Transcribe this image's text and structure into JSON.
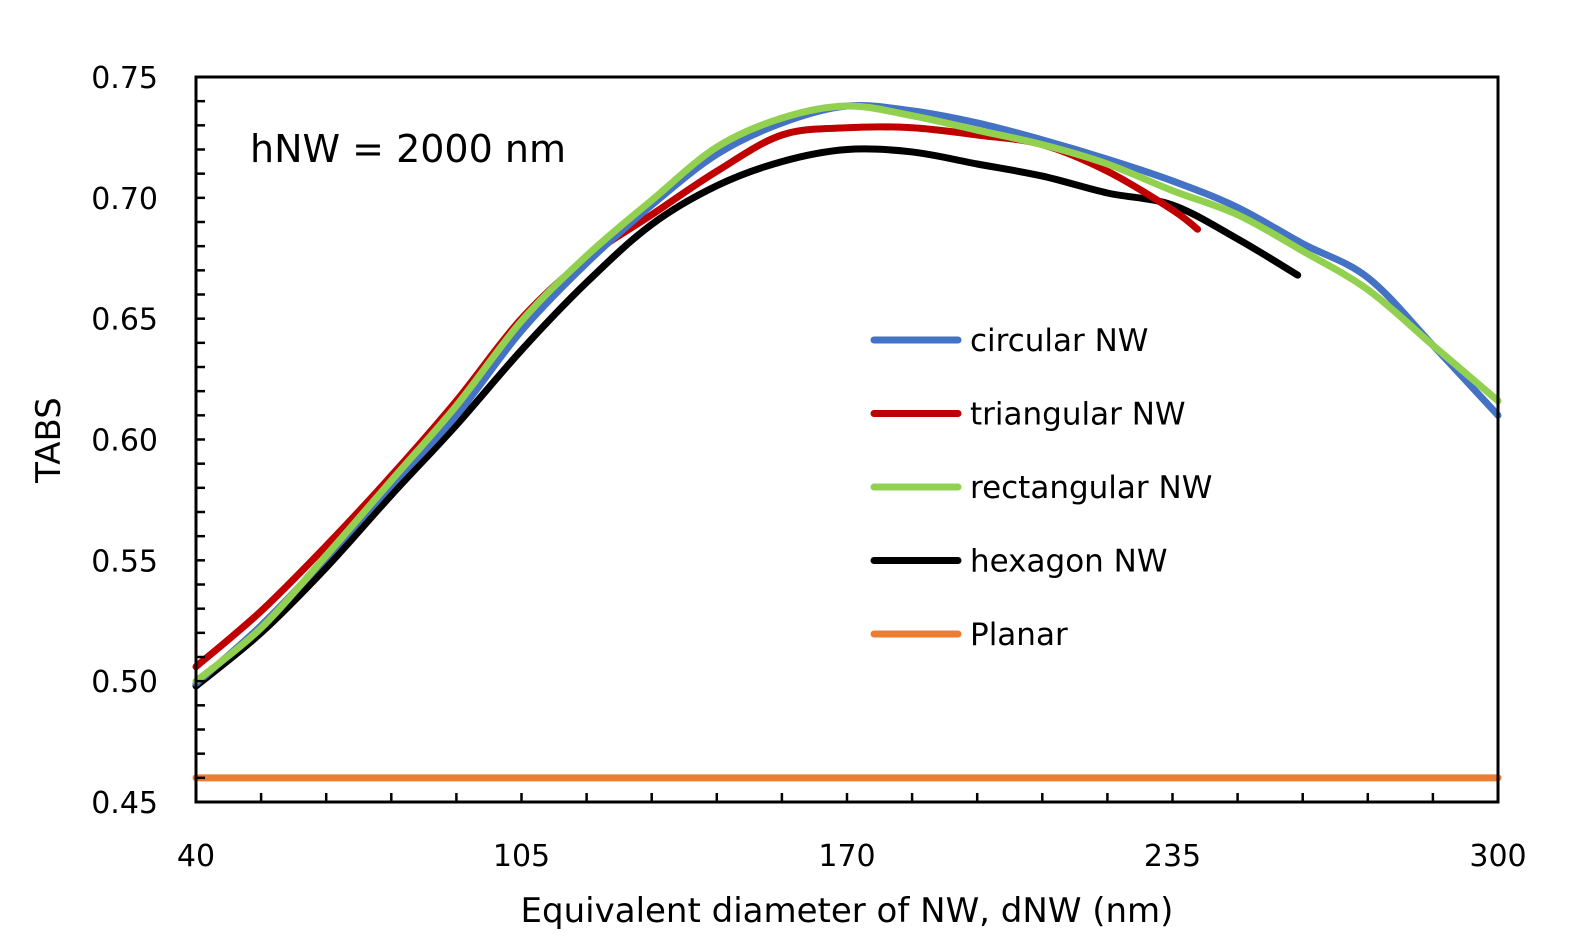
{
  "chart_data": {
    "type": "line",
    "title": "",
    "annotation": "hNW = 2000 nm",
    "xlabel": "Equivalent diameter of NW, dNW (nm)",
    "ylabel": "TABS",
    "xlim": [
      40,
      300
    ],
    "ylim": [
      0.45,
      0.75
    ],
    "x_ticks": [
      40,
      105,
      170,
      235,
      300
    ],
    "x_tick_labels": [
      "40",
      "105",
      "170",
      "235",
      "300"
    ],
    "x_minor_step": 13,
    "y_ticks": [
      0.45,
      0.5,
      0.55,
      0.6,
      0.65,
      0.7,
      0.75
    ],
    "y_tick_labels": [
      "0.45",
      "0.50",
      "0.55",
      "0.60",
      "0.65",
      "0.70",
      "0.75"
    ],
    "y_minor_step": 0.01,
    "grid": false,
    "legend_position": "center-right",
    "series": [
      {
        "name": "circular NW",
        "color": "#4472C4",
        "x": [
          40,
          53,
          66,
          79,
          92,
          105,
          118,
          131,
          144,
          157,
          170,
          183,
          196,
          209,
          222,
          235,
          248,
          261,
          274,
          287,
          300
        ],
        "values": [
          0.499,
          0.523,
          0.551,
          0.581,
          0.61,
          0.645,
          0.673,
          0.697,
          0.718,
          0.731,
          0.738,
          0.736,
          0.731,
          0.724,
          0.716,
          0.707,
          0.696,
          0.681,
          0.667,
          0.639,
          0.61
        ]
      },
      {
        "name": "triangular NW",
        "color": "#C00000",
        "x": [
          40,
          53,
          66,
          79,
          92,
          105,
          118,
          131,
          144,
          157,
          170,
          183,
          196,
          209,
          222,
          235,
          240
        ],
        "values": [
          0.506,
          0.529,
          0.556,
          0.585,
          0.616,
          0.65,
          0.675,
          0.693,
          0.711,
          0.726,
          0.729,
          0.729,
          0.726,
          0.722,
          0.711,
          0.695,
          0.687
        ]
      },
      {
        "name": "rectangular NW",
        "color": "#92D050",
        "x": [
          40,
          53,
          66,
          79,
          92,
          105,
          118,
          131,
          144,
          157,
          170,
          183,
          196,
          209,
          222,
          235,
          248,
          261,
          274,
          287,
          300
        ],
        "values": [
          0.5,
          0.522,
          0.552,
          0.583,
          0.614,
          0.649,
          0.676,
          0.699,
          0.721,
          0.733,
          0.738,
          0.734,
          0.728,
          0.722,
          0.714,
          0.703,
          0.693,
          0.678,
          0.662,
          0.639,
          0.616
        ]
      },
      {
        "name": "hexagon NW",
        "color": "#000000",
        "x": [
          40,
          53,
          66,
          79,
          92,
          105,
          118,
          131,
          144,
          157,
          170,
          183,
          196,
          209,
          222,
          235,
          248,
          260
        ],
        "values": [
          0.498,
          0.52,
          0.547,
          0.577,
          0.606,
          0.637,
          0.665,
          0.689,
          0.705,
          0.715,
          0.72,
          0.719,
          0.714,
          0.709,
          0.702,
          0.697,
          0.683,
          0.668
        ]
      },
      {
        "name": "Planar",
        "color": "#ED7D31",
        "x": [
          40,
          300
        ],
        "values": [
          0.46,
          0.46
        ]
      }
    ]
  }
}
